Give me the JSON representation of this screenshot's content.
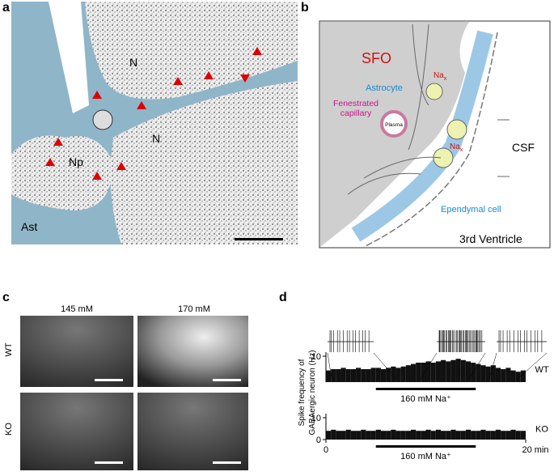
{
  "panel_a": {
    "letter": "a",
    "labels": [
      "N",
      "N",
      "Np",
      "Ast"
    ]
  },
  "panel_b": {
    "letter": "b",
    "sfo": "SFO",
    "astrocyte": "Astrocyte",
    "na_top": "Na",
    "na_top_sub": "x",
    "capillary": [
      "Fenestrated",
      "capillary"
    ],
    "plasma": "Plasma",
    "na_mid": "Na",
    "na_mid_sub": "x",
    "csf": "CSF",
    "ependymal": "Ependymal cell",
    "ventricle": "3rd Ventricle"
  },
  "panel_c": {
    "letter": "c",
    "columns": [
      "145 mM",
      "170 mM"
    ],
    "rows": [
      "WT",
      "KO"
    ]
  },
  "panel_d": {
    "letter": "d",
    "y_label": [
      "Spike frequency of",
      "GABAergic neuron (Hz)"
    ],
    "stimulus": {
      "label": "160 mM Na⁺",
      "start": 5,
      "end": 15
    }
  },
  "chart_data": [
    {
      "type": "histogram",
      "series_label": "WT",
      "color": "#111111",
      "bins": [
        0,
        0.5,
        1,
        1.5,
        2,
        2.5,
        3,
        3.5,
        4,
        4.5,
        5,
        5.5,
        6,
        6.5,
        7,
        7.5,
        8,
        8.5,
        9,
        9.5,
        10,
        10.5,
        11,
        11.5,
        12,
        12.5,
        13,
        13.5,
        14,
        14.5,
        15,
        15.5,
        16,
        16.5,
        17,
        17.5,
        18,
        18.5,
        19,
        19.5,
        20
      ],
      "values": [
        4.5,
        5,
        5,
        5.5,
        5,
        5,
        5.5,
        5,
        5,
        5.5,
        5.5,
        5,
        5.5,
        6,
        5.5,
        6,
        6.5,
        7,
        7.5,
        7.5,
        8,
        7.5,
        8,
        8.5,
        8,
        8.5,
        9,
        8.5,
        8,
        7.5,
        7,
        6.5,
        6,
        6.5,
        5.5,
        5,
        5.5,
        4.5,
        4,
        4.5
      ],
      "xlim": [
        0,
        20
      ],
      "ylim": [
        0,
        10
      ],
      "yticks": [
        10
      ]
    },
    {
      "type": "histogram",
      "series_label": "KO",
      "color": "#111111",
      "bins": [
        0,
        0.5,
        1,
        1.5,
        2,
        2.5,
        3,
        3.5,
        4,
        4.5,
        5,
        5.5,
        6,
        6.5,
        7,
        7.5,
        8,
        8.5,
        9,
        9.5,
        10,
        10.5,
        11,
        11.5,
        12,
        12.5,
        13,
        13.5,
        14,
        14.5,
        15,
        15.5,
        16,
        16.5,
        17,
        17.5,
        18,
        18.5,
        19,
        19.5,
        20
      ],
      "values": [
        4,
        4.5,
        4,
        4,
        4.5,
        4,
        4,
        4.5,
        4,
        4,
        4.5,
        4,
        4,
        4.5,
        4,
        4,
        4,
        4.5,
        4,
        4,
        4.5,
        4,
        4.5,
        4,
        4,
        4.5,
        4,
        4,
        4.5,
        4,
        4,
        4.5,
        4,
        4,
        4.5,
        4,
        4,
        4.5,
        4,
        4
      ],
      "xlim": [
        0,
        20
      ],
      "ylim": [
        0,
        10
      ],
      "yticks": [
        0,
        10
      ],
      "xticks": [
        0,
        {
          "value": 20,
          "label": "20 min"
        }
      ]
    }
  ]
}
